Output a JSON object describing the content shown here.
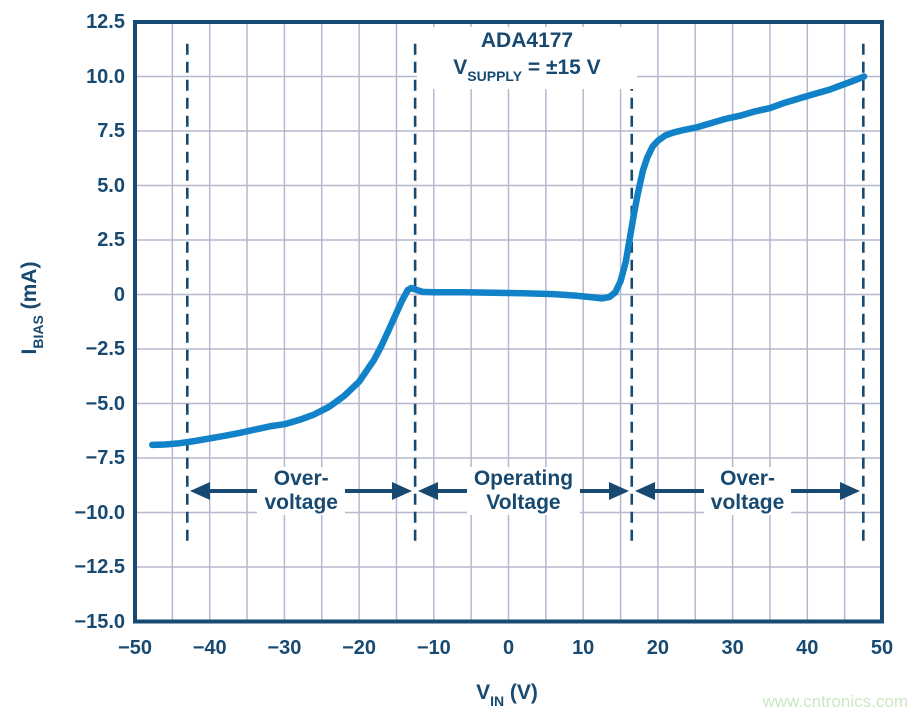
{
  "colors": {
    "navy": "#184a71",
    "grid": "#b6b8cf",
    "curve": "#1182c8",
    "watermark_green": "#cbe8c3",
    "background": "#ffffff"
  },
  "watermark": {
    "text": "www.cntronics.com"
  },
  "annotation": {
    "title": "ADA4177",
    "supply_pre": "V",
    "supply_sub": "SUPPLY",
    "supply_post": " =  ±15 V"
  },
  "x_axis": {
    "title_pre": "V",
    "title_sub": "IN",
    "title_post": " (V)"
  },
  "y_axis": {
    "title_pre": "I",
    "title_sub": "BIAS",
    "title_post": " (mA)"
  },
  "chart_data": {
    "type": "line",
    "title": "ADA4177",
    "subtitle": "VSUPPLY = ±15 V",
    "xlabel": "VIN (V)",
    "ylabel": "IBIAS (mA)",
    "xlim": [
      -50,
      50
    ],
    "ylim": [
      -15,
      12.5
    ],
    "grid_x_step": 5,
    "grid_y_step": 2.5,
    "grid": true,
    "legend": false,
    "x_ticks": [
      {
        "v": -50,
        "label": "−50"
      },
      {
        "v": -40,
        "label": "−40"
      },
      {
        "v": -30,
        "label": "−30"
      },
      {
        "v": -20,
        "label": "−20"
      },
      {
        "v": -10,
        "label": "−10"
      },
      {
        "v": 0,
        "label": "0"
      },
      {
        "v": 10,
        "label": "10"
      },
      {
        "v": 20,
        "label": "20"
      },
      {
        "v": 30,
        "label": "30"
      },
      {
        "v": 40,
        "label": "40"
      },
      {
        "v": 50,
        "label": "50"
      }
    ],
    "y_ticks": [
      {
        "v": 12.5,
        "label": "12.5"
      },
      {
        "v": 10,
        "label": "10.0"
      },
      {
        "v": 7.5,
        "label": "7.5"
      },
      {
        "v": 5,
        "label": "5.0"
      },
      {
        "v": 2.5,
        "label": "2.5"
      },
      {
        "v": 0,
        "label": "0"
      },
      {
        "v": -2.5,
        "label": "−2.5"
      },
      {
        "v": -5,
        "label": "−5.0"
      },
      {
        "v": -7.5,
        "label": "−7.5"
      },
      {
        "v": -10,
        "label": "−10.0"
      },
      {
        "v": -12.5,
        "label": "−12.5"
      },
      {
        "v": -15,
        "label": "−15.0"
      }
    ],
    "dashed_lines_x": [
      -43,
      -12.5,
      16.5,
      47.5
    ],
    "dashed_y_range": [
      -11.5,
      11.5
    ],
    "regions_arrow_y": -9,
    "regions": [
      {
        "name": "overvoltage-left",
        "line1": "Over-",
        "line2": "voltage",
        "from": -43,
        "to": -12.5
      },
      {
        "name": "operating-voltage",
        "line1": "Operating",
        "line2": "Voltage",
        "from": -12.5,
        "to": 16.5
      },
      {
        "name": "overvoltage-right",
        "line1": "Over-",
        "line2": "voltage",
        "from": 16.5,
        "to": 47.5
      }
    ],
    "series": [
      {
        "name": "IBIAS vs VIN",
        "points": [
          [
            -47.7,
            -6.9
          ],
          [
            -46,
            -6.88
          ],
          [
            -44,
            -6.82
          ],
          [
            -42,
            -6.72
          ],
          [
            -40,
            -6.6
          ],
          [
            -38,
            -6.48
          ],
          [
            -36,
            -6.35
          ],
          [
            -34,
            -6.2
          ],
          [
            -32,
            -6.05
          ],
          [
            -30,
            -5.95
          ],
          [
            -28,
            -5.75
          ],
          [
            -26,
            -5.5
          ],
          [
            -24,
            -5.15
          ],
          [
            -22,
            -4.65
          ],
          [
            -20,
            -4.0
          ],
          [
            -18,
            -3.0
          ],
          [
            -17,
            -2.35
          ],
          [
            -16,
            -1.6
          ],
          [
            -15,
            -0.85
          ],
          [
            -14.2,
            -0.25
          ],
          [
            -13.5,
            0.2
          ],
          [
            -13,
            0.3
          ],
          [
            -12.4,
            0.22
          ],
          [
            -11.5,
            0.12
          ],
          [
            -10,
            0.1
          ],
          [
            -6,
            0.1
          ],
          [
            -2,
            0.08
          ],
          [
            2,
            0.06
          ],
          [
            6,
            0.02
          ],
          [
            9,
            -0.05
          ],
          [
            11,
            -0.12
          ],
          [
            12.5,
            -0.18
          ],
          [
            13.5,
            -0.12
          ],
          [
            14.3,
            0.1
          ],
          [
            15,
            0.6
          ],
          [
            15.7,
            1.5
          ],
          [
            16.2,
            2.5
          ],
          [
            16.8,
            3.7
          ],
          [
            17.3,
            4.6
          ],
          [
            18,
            5.7
          ],
          [
            18.6,
            6.3
          ],
          [
            19.3,
            6.8
          ],
          [
            20,
            7.05
          ],
          [
            21,
            7.3
          ],
          [
            22,
            7.42
          ],
          [
            23.5,
            7.55
          ],
          [
            25,
            7.65
          ],
          [
            27,
            7.85
          ],
          [
            29,
            8.05
          ],
          [
            31,
            8.2
          ],
          [
            33,
            8.4
          ],
          [
            35,
            8.55
          ],
          [
            37,
            8.8
          ],
          [
            39,
            9.0
          ],
          [
            41,
            9.2
          ],
          [
            43,
            9.4
          ],
          [
            45,
            9.65
          ],
          [
            46.5,
            9.85
          ],
          [
            47.6,
            10.0
          ]
        ]
      }
    ]
  }
}
